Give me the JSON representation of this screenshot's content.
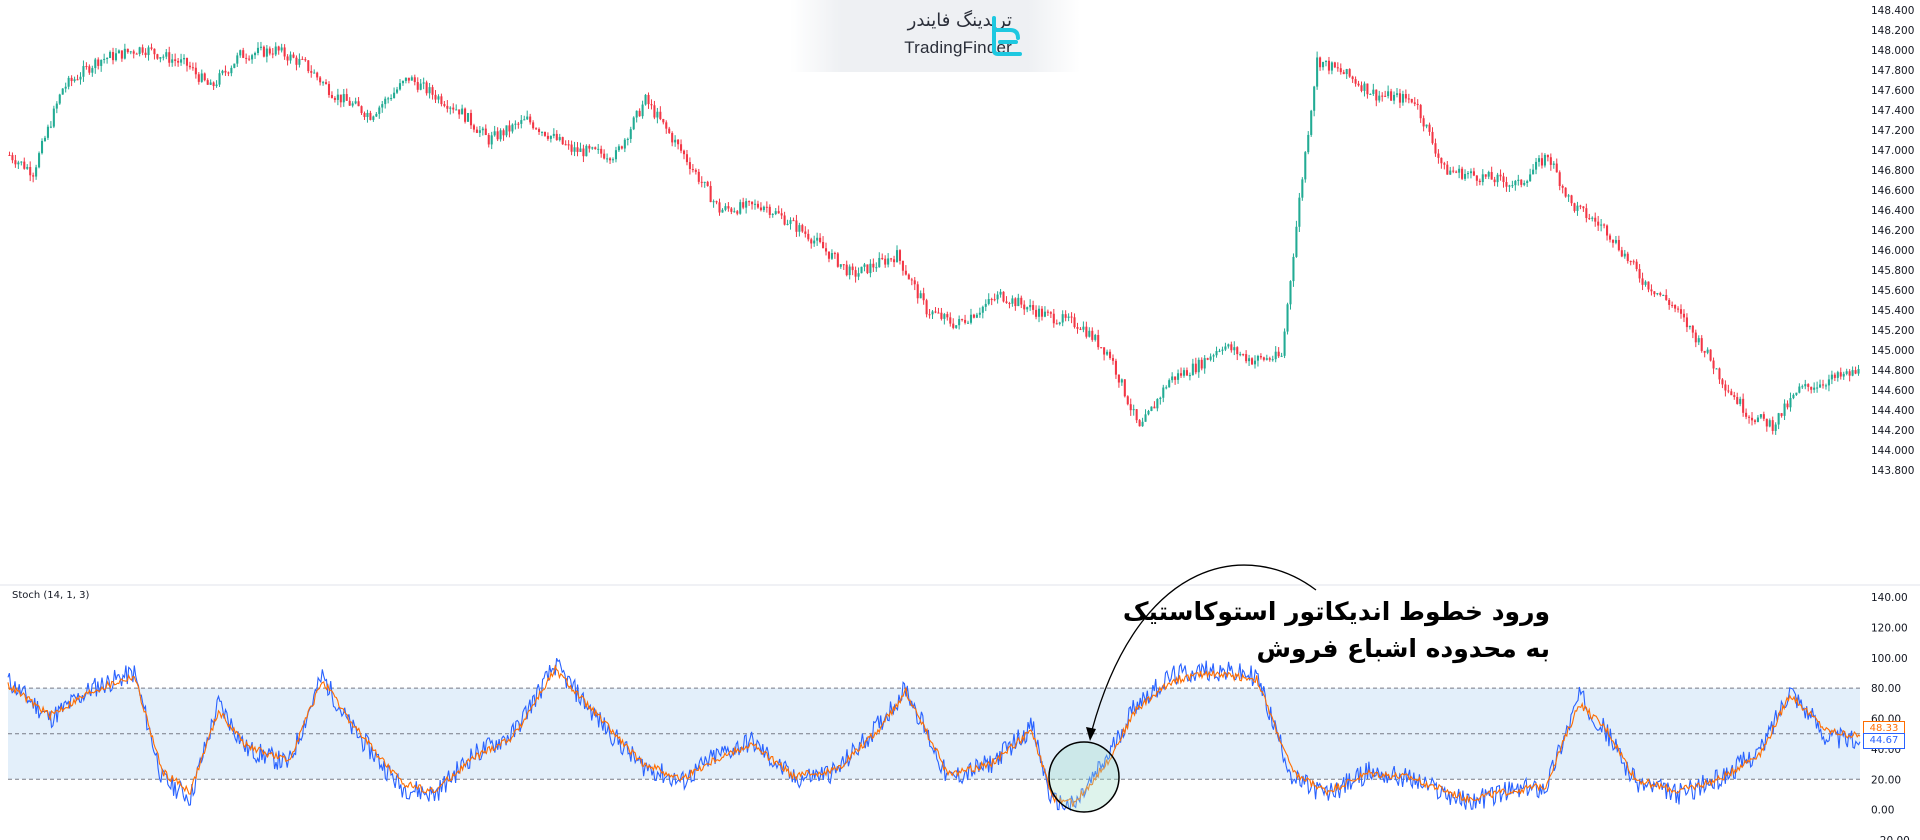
{
  "branding": {
    "name_fa": "تریدینگ فایندر",
    "name_en": "TradingFinder",
    "logo_icon": "tradingfinder-logo-icon"
  },
  "colors": {
    "bull": "#22ab94",
    "bear": "#f23645",
    "k_line": "#2962ff",
    "d_line": "#ff6d00",
    "overbought_band": "#e3effa",
    "annotation": "#000000"
  },
  "indicator": {
    "label": "Stoch (14, 1, 3)",
    "d_value": "48.33",
    "k_value": "44.67"
  },
  "annotation": {
    "line1": "ورود خطوط اندیکاتور استوکاستیک",
    "line2": "به محدوده اشباع فروش"
  },
  "chart_data": [
    {
      "type": "candlestick",
      "title": "",
      "ylim": [
        143.8,
        148.4
      ],
      "yticks": [
        "148.400",
        "148.200",
        "148.000",
        "147.800",
        "147.600",
        "147.400",
        "147.200",
        "147.000",
        "146.800",
        "146.600",
        "146.400",
        "146.200",
        "146.000",
        "145.800",
        "145.600",
        "145.400",
        "145.200",
        "145.000",
        "144.800",
        "144.600",
        "144.400",
        "144.200",
        "144.000",
        "143.800"
      ],
      "grid": false,
      "path_anchors": [
        [
          0,
          146.95
        ],
        [
          8,
          146.78
        ],
        [
          18,
          147.62
        ],
        [
          30,
          147.9
        ],
        [
          45,
          148.02
        ],
        [
          60,
          147.85
        ],
        [
          68,
          147.62
        ],
        [
          78,
          147.95
        ],
        [
          90,
          148.0
        ],
        [
          100,
          147.85
        ],
        [
          110,
          147.55
        ],
        [
          122,
          147.35
        ],
        [
          135,
          147.72
        ],
        [
          142,
          147.58
        ],
        [
          152,
          147.4
        ],
        [
          162,
          147.1
        ],
        [
          175,
          147.3
        ],
        [
          190,
          147.0
        ],
        [
          205,
          146.95
        ],
        [
          215,
          147.5
        ],
        [
          228,
          146.95
        ],
        [
          240,
          146.4
        ],
        [
          255,
          146.45
        ],
        [
          270,
          146.15
        ],
        [
          285,
          145.75
        ],
        [
          300,
          145.95
        ],
        [
          310,
          145.4
        ],
        [
          320,
          145.25
        ],
        [
          335,
          145.55
        ],
        [
          350,
          145.35
        ],
        [
          362,
          145.25
        ],
        [
          372,
          144.95
        ],
        [
          382,
          144.2
        ],
        [
          392,
          144.7
        ],
        [
          402,
          144.85
        ],
        [
          410,
          145.05
        ],
        [
          420,
          144.9
        ],
        [
          430,
          144.93
        ],
        [
          436,
          146.5
        ],
        [
          442,
          147.9
        ],
        [
          452,
          147.75
        ],
        [
          462,
          147.55
        ],
        [
          475,
          147.5
        ],
        [
          485,
          146.8
        ],
        [
          500,
          146.72
        ],
        [
          510,
          146.65
        ],
        [
          520,
          146.95
        ],
        [
          528,
          146.45
        ],
        [
          540,
          146.2
        ],
        [
          552,
          145.7
        ],
        [
          562,
          145.45
        ],
        [
          572,
          145.05
        ],
        [
          580,
          144.65
        ],
        [
          588,
          144.35
        ],
        [
          596,
          144.25
        ],
        [
          605,
          144.6
        ],
        [
          615,
          144.7
        ],
        [
          625,
          144.78
        ]
      ]
    },
    {
      "type": "line",
      "title": "Stoch (14, 1, 3)",
      "ylim": [
        -20,
        140
      ],
      "yticks": [
        "140.00",
        "120.00",
        "100.00",
        "80.00",
        "60.00",
        "40.00",
        "20.00",
        "0.00",
        "−20.00"
      ],
      "levels": [
        80,
        50,
        20
      ],
      "series": [
        {
          "name": "",
          "color": "#2962ff",
          "role": "k",
          "anchors": [
            [
              0,
              85
            ],
            [
              15,
              60
            ],
            [
              30,
              80
            ],
            [
              45,
              90
            ],
            [
              55,
              20
            ],
            [
              65,
              8
            ],
            [
              75,
              70
            ],
            [
              85,
              40
            ],
            [
              100,
              30
            ],
            [
              112,
              88
            ],
            [
              122,
              55
            ],
            [
              140,
              15
            ],
            [
              152,
              10
            ],
            [
              165,
              35
            ],
            [
              180,
              50
            ],
            [
              195,
              95
            ],
            [
              210,
              60
            ],
            [
              225,
              30
            ],
            [
              240,
              18
            ],
            [
              252,
              35
            ],
            [
              265,
              45
            ],
            [
              280,
              20
            ],
            [
              295,
              25
            ],
            [
              310,
              55
            ],
            [
              320,
              80
            ],
            [
              335,
              20
            ],
            [
              350,
              30
            ],
            [
              365,
              55
            ],
            [
              372,
              5
            ],
            [
              380,
              2
            ],
            [
              392,
              35
            ],
            [
              402,
              70
            ],
            [
              415,
              88
            ],
            [
              428,
              92
            ],
            [
              445,
              88
            ],
            [
              458,
              20
            ],
            [
              470,
              10
            ],
            [
              485,
              25
            ],
            [
              500,
              20
            ],
            [
              520,
              5
            ],
            [
              535,
              12
            ],
            [
              548,
              15
            ],
            [
              560,
              75
            ],
            [
              570,
              50
            ],
            [
              580,
              18
            ],
            [
              595,
              10
            ],
            [
              610,
              20
            ],
            [
              625,
              40
            ],
            [
              635,
              80
            ],
            [
              648,
              48
            ],
            [
              660,
              44.67
            ]
          ]
        },
        {
          "name": "",
          "color": "#ff6d00",
          "role": "d",
          "anchors": [
            [
              0,
              82
            ],
            [
              15,
              62
            ],
            [
              30,
              78
            ],
            [
              45,
              88
            ],
            [
              55,
              25
            ],
            [
              65,
              12
            ],
            [
              75,
              65
            ],
            [
              85,
              42
            ],
            [
              100,
              32
            ],
            [
              112,
              85
            ],
            [
              122,
              58
            ],
            [
              140,
              18
            ],
            [
              152,
              12
            ],
            [
              165,
              33
            ],
            [
              180,
              48
            ],
            [
              195,
              92
            ],
            [
              210,
              62
            ],
            [
              225,
              32
            ],
            [
              240,
              20
            ],
            [
              252,
              33
            ],
            [
              265,
              43
            ],
            [
              280,
              22
            ],
            [
              295,
              26
            ],
            [
              310,
              52
            ],
            [
              320,
              78
            ],
            [
              335,
              23
            ],
            [
              350,
              30
            ],
            [
              365,
              52
            ],
            [
              372,
              8
            ],
            [
              380,
              4
            ],
            [
              392,
              32
            ],
            [
              402,
              66
            ],
            [
              415,
              85
            ],
            [
              428,
              90
            ],
            [
              445,
              86
            ],
            [
              458,
              24
            ],
            [
              470,
              12
            ],
            [
              485,
              24
            ],
            [
              500,
              21
            ],
            [
              520,
              7
            ],
            [
              535,
              12
            ],
            [
              548,
              16
            ],
            [
              560,
              70
            ],
            [
              570,
              52
            ],
            [
              580,
              20
            ],
            [
              595,
              12
            ],
            [
              610,
              20
            ],
            [
              625,
              38
            ],
            [
              635,
              76
            ],
            [
              648,
              52
            ],
            [
              660,
              48.33
            ]
          ]
        }
      ]
    }
  ]
}
